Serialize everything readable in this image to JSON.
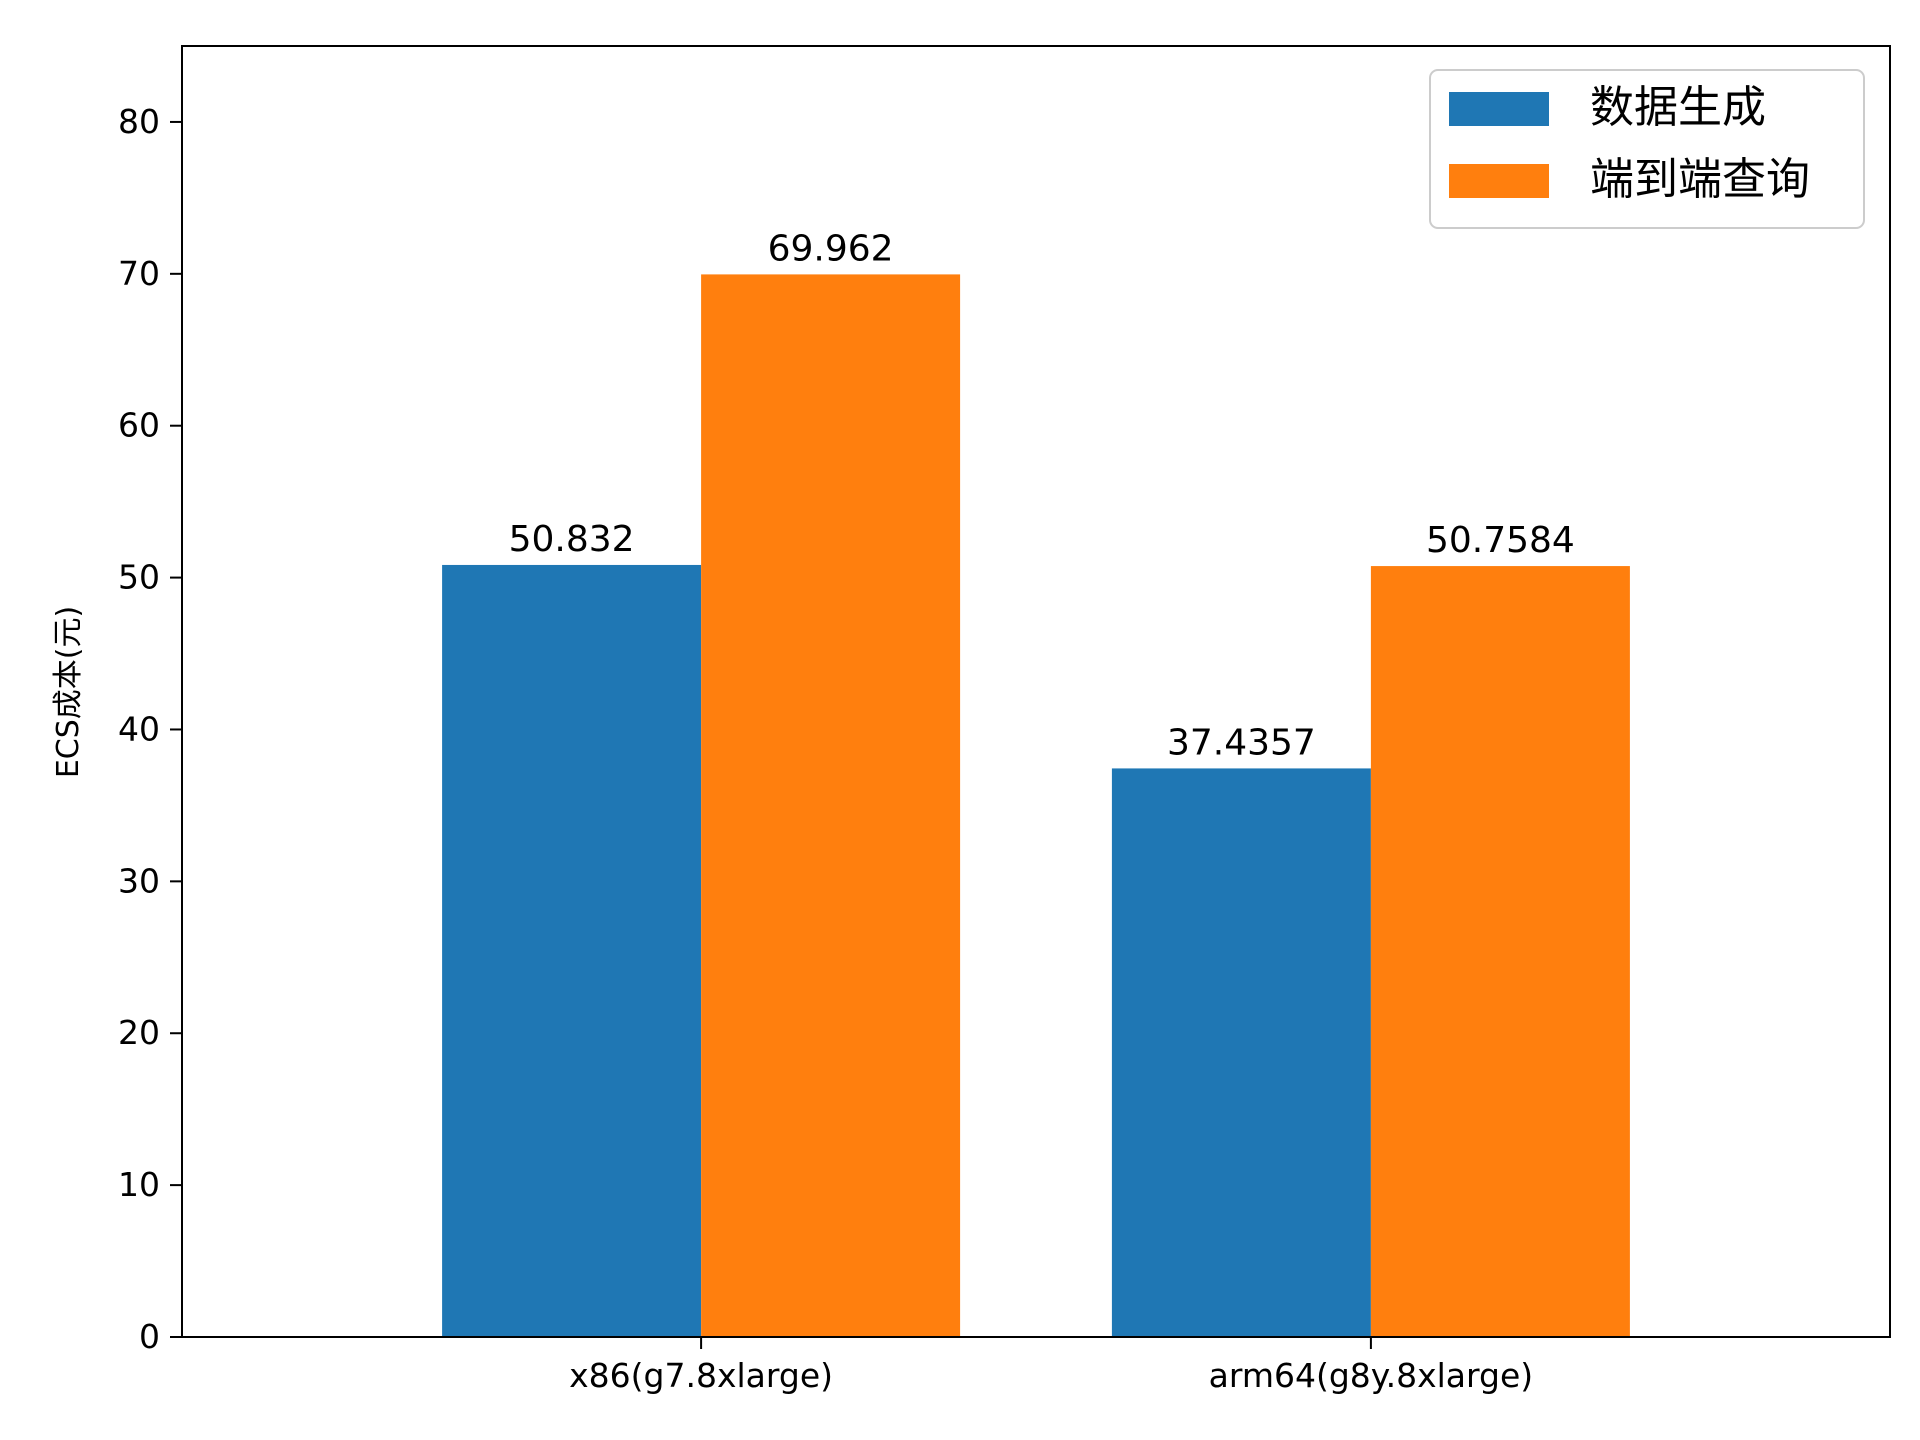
{
  "chart_data": {
    "type": "bar",
    "title": "",
    "xlabel": "",
    "ylabel": "ECS成本(元)",
    "ylim": [
      0,
      85
    ],
    "yticks": [
      0,
      10,
      20,
      30,
      40,
      50,
      60,
      70,
      80
    ],
    "categories": [
      "x86(g7.8xlarge)",
      "arm64(g8y.8xlarge)"
    ],
    "series": [
      {
        "name": "数据生成",
        "color": "#1f77b4",
        "values": [
          50.832,
          37.4357
        ],
        "labels": [
          "50.832",
          "37.4357"
        ]
      },
      {
        "name": "端到端查询",
        "color": "#ff7f0e",
        "values": [
          69.962,
          50.7584
        ],
        "labels": [
          "69.962",
          "50.7584"
        ]
      }
    ],
    "legend": {
      "position": "top-right"
    },
    "grid": false
  }
}
